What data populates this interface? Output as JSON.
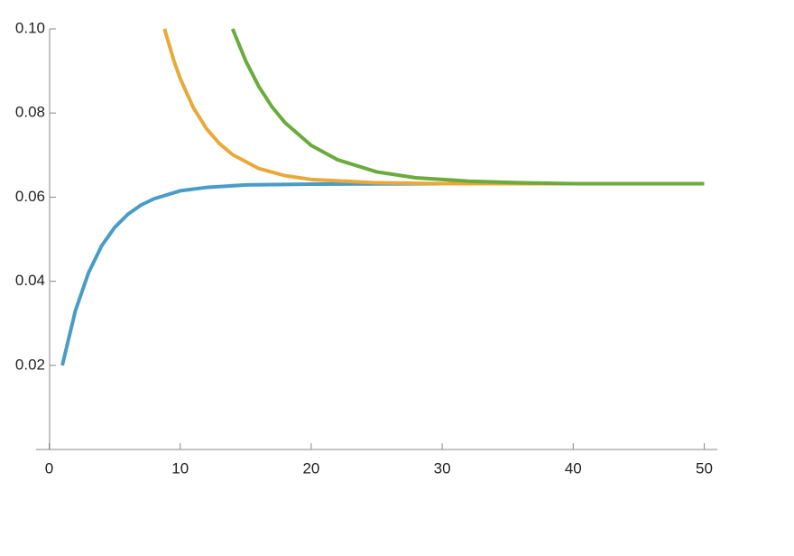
{
  "chart_data": {
    "type": "line",
    "xlim": [
      -1,
      51
    ],
    "ylim": [
      0,
      0.1
    ],
    "xticks": [
      0,
      10,
      20,
      30,
      40,
      50
    ],
    "yticks": [
      0.02,
      0.04,
      0.06,
      0.08,
      {
        "value": 0.1,
        "label": "0.10"
      }
    ],
    "series": [
      {
        "color": "#4a9cc8",
        "x": [
          1,
          2,
          3,
          4,
          5,
          6,
          7,
          8,
          10,
          12,
          15,
          20,
          30,
          40,
          50
        ],
        "values": [
          0.02,
          0.033,
          0.042,
          0.0484,
          0.0528,
          0.0559,
          0.0581,
          0.0596,
          0.0615,
          0.0623,
          0.0629,
          0.0631,
          0.0632,
          0.0632,
          0.0632
        ]
      },
      {
        "color": "#e8a93a",
        "x": [
          8.8,
          9.5,
          10,
          11,
          12,
          13,
          14,
          16,
          18,
          20,
          25,
          30,
          40,
          50
        ],
        "values": [
          0.1,
          0.0926,
          0.0882,
          0.0813,
          0.0763,
          0.0727,
          0.0701,
          0.0668,
          0.0651,
          0.0642,
          0.0634,
          0.0632,
          0.0632,
          0.0632
        ]
      },
      {
        "color": "#6aab3c",
        "x": [
          14,
          15,
          16,
          17,
          18,
          20,
          22,
          25,
          28,
          32,
          36,
          40,
          50
        ],
        "values": [
          0.1,
          0.0924,
          0.0863,
          0.0815,
          0.0777,
          0.0723,
          0.0689,
          0.066,
          0.0646,
          0.0638,
          0.0634,
          0.0632,
          0.0632
        ]
      }
    ]
  }
}
